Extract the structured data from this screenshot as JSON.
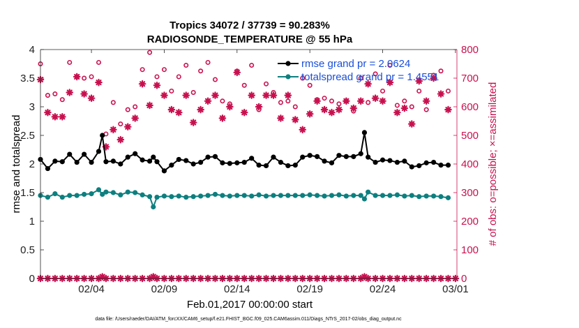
{
  "chart_data": {
    "type": "line",
    "title": "Tropics 34072 / 37739 = 90.283%",
    "subtitle": "RADIOSONDE_TEMPERATURE @ 55 hPa",
    "xlabel": "Feb.01,2017 00:00:00 start",
    "ylabel": "rmse and totalspread",
    "ylabel_right": "# of obs: o=possible; ×=assimilated",
    "footer": "data file: /Users/raeder/DAI/ATM_forcXX/CAM6_setup/f.e21.FHIST_BGC.f09_025.CAM6assim.011/Diags_NTrS_2017-02/obs_diag_output.nc",
    "xlim": [
      0.5,
      29.1
    ],
    "ylim": [
      0,
      4
    ],
    "ylim_right": [
      0,
      800
    ],
    "xticks": [
      {
        "day": 4,
        "label": "02/04"
      },
      {
        "day": 9,
        "label": "02/09"
      },
      {
        "day": 14,
        "label": "02/14"
      },
      {
        "day": 19,
        "label": "02/19"
      },
      {
        "day": 24,
        "label": "02/24"
      },
      {
        "day": 29,
        "label": "03/01"
      }
    ],
    "yticks": [
      "0",
      "0.5",
      "1",
      "1.5",
      "2",
      "2.5",
      "3",
      "3.5",
      "4"
    ],
    "yticks_right": [
      "0",
      "100",
      "200",
      "300",
      "400",
      "500",
      "600",
      "700",
      "800"
    ],
    "legend_position": "top-right",
    "series": [
      {
        "name": "rmse",
        "legend": "rmse grand pr = 2.0624",
        "color": "#000000",
        "axis": "left",
        "points": [
          [
            0.5,
            2.08
          ],
          [
            1.0,
            1.92
          ],
          [
            1.5,
            2.05
          ],
          [
            2.0,
            2.04
          ],
          [
            2.5,
            2.17
          ],
          [
            3.0,
            2.03
          ],
          [
            3.5,
            2.17
          ],
          [
            4.0,
            2.03
          ],
          [
            4.5,
            2.22
          ],
          [
            4.75,
            2.5
          ],
          [
            5.0,
            2.04
          ],
          [
            5.5,
            2.05
          ],
          [
            6.0,
            2.0
          ],
          [
            6.5,
            2.12
          ],
          [
            7.0,
            2.18
          ],
          [
            7.5,
            2.07
          ],
          [
            8.0,
            2.05
          ],
          [
            8.25,
            2.12
          ],
          [
            8.5,
            2.04
          ],
          [
            9.0,
            1.88
          ],
          [
            9.5,
            1.98
          ],
          [
            10.0,
            2.08
          ],
          [
            10.5,
            2.06
          ],
          [
            11.0,
            2.0
          ],
          [
            11.5,
            2.03
          ],
          [
            12.0,
            2.12
          ],
          [
            12.5,
            2.13
          ],
          [
            13.0,
            2.02
          ],
          [
            13.5,
            2.01
          ],
          [
            14.0,
            2.02
          ],
          [
            14.5,
            2.03
          ],
          [
            15.0,
            2.1
          ],
          [
            15.5,
            1.98
          ],
          [
            16.0,
            1.97
          ],
          [
            16.5,
            2.12
          ],
          [
            17.0,
            2.03
          ],
          [
            17.5,
            1.97
          ],
          [
            18.0,
            1.98
          ],
          [
            18.5,
            2.12
          ],
          [
            19.0,
            2.15
          ],
          [
            19.5,
            2.13
          ],
          [
            20.0,
            2.05
          ],
          [
            20.5,
            2.02
          ],
          [
            21.0,
            2.15
          ],
          [
            21.5,
            2.13
          ],
          [
            22.0,
            2.13
          ],
          [
            22.5,
            2.18
          ],
          [
            22.75,
            2.55
          ],
          [
            23.0,
            2.12
          ],
          [
            23.5,
            2.03
          ],
          [
            24.0,
            2.07
          ],
          [
            24.5,
            2.06
          ],
          [
            25.0,
            2.03
          ],
          [
            25.5,
            2.05
          ],
          [
            26.0,
            1.95
          ],
          [
            26.5,
            1.97
          ],
          [
            27.0,
            2.02
          ],
          [
            27.5,
            2.03
          ],
          [
            28.0,
            1.98
          ],
          [
            28.5,
            1.98
          ]
        ]
      },
      {
        "name": "totalspread",
        "legend": "totalspread grand pr = 1.4551",
        "color": "#0d7f7f",
        "axis": "left",
        "points": [
          [
            0.5,
            1.45
          ],
          [
            1.0,
            1.42
          ],
          [
            1.5,
            1.48
          ],
          [
            2.0,
            1.42
          ],
          [
            2.5,
            1.45
          ],
          [
            3.0,
            1.45
          ],
          [
            3.5,
            1.47
          ],
          [
            4.0,
            1.48
          ],
          [
            4.5,
            1.55
          ],
          [
            4.75,
            1.47
          ],
          [
            5.0,
            1.51
          ],
          [
            5.5,
            1.5
          ],
          [
            6.0,
            1.46
          ],
          [
            6.5,
            1.51
          ],
          [
            7.0,
            1.5
          ],
          [
            7.5,
            1.46
          ],
          [
            8.0,
            1.43
          ],
          [
            8.25,
            1.25
          ],
          [
            8.5,
            1.42
          ],
          [
            9.0,
            1.44
          ],
          [
            9.5,
            1.43
          ],
          [
            10.0,
            1.44
          ],
          [
            10.5,
            1.42
          ],
          [
            11.0,
            1.43
          ],
          [
            11.5,
            1.44
          ],
          [
            12.0,
            1.45
          ],
          [
            12.5,
            1.47
          ],
          [
            13.0,
            1.45
          ],
          [
            13.5,
            1.44
          ],
          [
            14.0,
            1.45
          ],
          [
            14.5,
            1.45
          ],
          [
            15.0,
            1.44
          ],
          [
            15.5,
            1.46
          ],
          [
            16.0,
            1.44
          ],
          [
            16.5,
            1.45
          ],
          [
            17.0,
            1.45
          ],
          [
            17.5,
            1.45
          ],
          [
            18.0,
            1.45
          ],
          [
            18.5,
            1.45
          ],
          [
            19.0,
            1.46
          ],
          [
            19.5,
            1.45
          ],
          [
            20.0,
            1.44
          ],
          [
            20.5,
            1.45
          ],
          [
            21.0,
            1.46
          ],
          [
            21.5,
            1.44
          ],
          [
            22.0,
            1.45
          ],
          [
            22.5,
            1.45
          ],
          [
            22.75,
            1.39
          ],
          [
            23.0,
            1.51
          ],
          [
            23.5,
            1.45
          ],
          [
            24.0,
            1.45
          ],
          [
            24.5,
            1.45
          ],
          [
            25.0,
            1.46
          ],
          [
            25.5,
            1.44
          ],
          [
            26.0,
            1.45
          ],
          [
            26.5,
            1.43
          ],
          [
            27.0,
            1.44
          ],
          [
            27.5,
            1.44
          ],
          [
            28.0,
            1.43
          ],
          [
            28.5,
            1.41
          ]
        ]
      },
      {
        "name": "obs possible",
        "marker": "o",
        "color": "#c8104f",
        "axis": "right",
        "points": [
          [
            0.5,
            750
          ],
          [
            1.0,
            640
          ],
          [
            1.5,
            645
          ],
          [
            2.0,
            625
          ],
          [
            2.5,
            755
          ],
          [
            3.0,
            705
          ],
          [
            3.5,
            700
          ],
          [
            4.0,
            705
          ],
          [
            4.5,
            755
          ],
          [
            5.0,
            505
          ],
          [
            5.5,
            615
          ],
          [
            6.0,
            540
          ],
          [
            6.5,
            590
          ],
          [
            7.0,
            600
          ],
          [
            7.5,
            730
          ],
          [
            8.0,
            790
          ],
          [
            8.5,
            705
          ],
          [
            9.0,
            730
          ],
          [
            9.5,
            655
          ],
          [
            10.0,
            705
          ],
          [
            10.5,
            745
          ],
          [
            11.0,
            650
          ],
          [
            11.5,
            725
          ],
          [
            12.0,
            755
          ],
          [
            12.5,
            695
          ],
          [
            13.0,
            620
          ],
          [
            13.5,
            610
          ],
          [
            14.0,
            725
          ],
          [
            14.5,
            675
          ],
          [
            15.0,
            745
          ],
          [
            15.5,
            590
          ],
          [
            16.0,
            680
          ],
          [
            16.5,
            650
          ],
          [
            17.0,
            615
          ],
          [
            17.5,
            620
          ],
          [
            18.0,
            600
          ],
          [
            18.5,
            700
          ],
          [
            19.0,
            675
          ],
          [
            19.5,
            625
          ],
          [
            20.0,
            630
          ],
          [
            20.5,
            620
          ],
          [
            21.0,
            610
          ],
          [
            21.5,
            620
          ],
          [
            22.0,
            585
          ],
          [
            22.5,
            700
          ],
          [
            23.0,
            615
          ],
          [
            23.5,
            715
          ],
          [
            24.0,
            655
          ],
          [
            24.5,
            745
          ],
          [
            25.0,
            605
          ],
          [
            25.5,
            620
          ],
          [
            26.0,
            600
          ],
          [
            26.5,
            655
          ],
          [
            27.0,
            590
          ],
          [
            27.5,
            710
          ],
          [
            28.0,
            725
          ],
          [
            28.5,
            655
          ]
        ]
      },
      {
        "name": "obs assimilated",
        "marker": "*",
        "color": "#c8104f",
        "axis": "right",
        "points": [
          [
            0.5,
            695
          ],
          [
            1.0,
            580
          ],
          [
            1.5,
            565
          ],
          [
            2.0,
            565
          ],
          [
            2.5,
            650
          ],
          [
            3.0,
            705
          ],
          [
            3.5,
            645
          ],
          [
            4.0,
            630
          ],
          [
            4.5,
            685
          ],
          [
            5.0,
            460
          ],
          [
            5.5,
            520
          ],
          [
            6.0,
            485
          ],
          [
            6.5,
            530
          ],
          [
            7.0,
            560
          ],
          [
            7.5,
            680
          ],
          [
            8.0,
            605
          ],
          [
            8.5,
            675
          ],
          [
            9.0,
            640
          ],
          [
            9.5,
            590
          ],
          [
            10.0,
            580
          ],
          [
            10.5,
            640
          ],
          [
            11.0,
            545
          ],
          [
            11.5,
            590
          ],
          [
            12.0,
            620
          ],
          [
            12.5,
            640
          ],
          [
            13.0,
            560
          ],
          [
            13.5,
            600
          ],
          [
            14.0,
            720
          ],
          [
            14.5,
            580
          ],
          [
            15.0,
            640
          ],
          [
            15.5,
            600
          ],
          [
            16.0,
            640
          ],
          [
            16.5,
            640
          ],
          [
            17.0,
            560
          ],
          [
            17.5,
            640
          ],
          [
            18.0,
            555
          ],
          [
            18.5,
            520
          ],
          [
            19.0,
            575
          ],
          [
            19.5,
            620
          ],
          [
            20.0,
            590
          ],
          [
            20.5,
            580
          ],
          [
            21.0,
            590
          ],
          [
            21.5,
            620
          ],
          [
            22.0,
            595
          ],
          [
            22.5,
            620
          ],
          [
            23.0,
            680
          ],
          [
            23.5,
            630
          ],
          [
            24.0,
            620
          ],
          [
            24.5,
            685
          ],
          [
            25.0,
            580
          ],
          [
            25.5,
            595
          ],
          [
            26.0,
            540
          ],
          [
            26.5,
            690
          ],
          [
            27.0,
            620
          ],
          [
            27.5,
            700
          ],
          [
            28.0,
            645
          ],
          [
            28.5,
            590
          ]
        ]
      },
      {
        "name": "obs near zero",
        "marker": "*",
        "color": "#c8104f",
        "axis": "right",
        "points": [
          [
            0.5,
            0
          ],
          [
            1.0,
            0
          ],
          [
            1.5,
            0
          ],
          [
            2.0,
            0
          ],
          [
            2.5,
            0
          ],
          [
            3.0,
            0
          ],
          [
            3.5,
            0
          ],
          [
            4.0,
            0
          ],
          [
            4.5,
            0
          ],
          [
            4.75,
            6
          ],
          [
            5.0,
            0
          ],
          [
            5.5,
            0
          ],
          [
            6.0,
            0
          ],
          [
            6.5,
            0
          ],
          [
            7.0,
            0
          ],
          [
            7.5,
            0
          ],
          [
            8.0,
            0
          ],
          [
            8.25,
            6
          ],
          [
            8.5,
            0
          ],
          [
            9.0,
            0
          ],
          [
            9.5,
            0
          ],
          [
            10.0,
            0
          ],
          [
            10.5,
            0
          ],
          [
            11.0,
            0
          ],
          [
            11.5,
            0
          ],
          [
            12.0,
            0
          ],
          [
            12.5,
            0
          ],
          [
            13.0,
            0
          ],
          [
            13.5,
            0
          ],
          [
            14.0,
            0
          ],
          [
            14.5,
            0
          ],
          [
            15.0,
            0
          ],
          [
            15.5,
            0
          ],
          [
            16.0,
            0
          ],
          [
            16.5,
            0
          ],
          [
            17.0,
            0
          ],
          [
            17.5,
            0
          ],
          [
            18.0,
            0
          ],
          [
            18.5,
            0
          ],
          [
            19.0,
            0
          ],
          [
            19.5,
            0
          ],
          [
            20.0,
            0
          ],
          [
            20.5,
            0
          ],
          [
            21.0,
            0
          ],
          [
            21.5,
            0
          ],
          [
            22.0,
            0
          ],
          [
            22.5,
            0
          ],
          [
            22.75,
            6
          ],
          [
            23.0,
            0
          ],
          [
            23.5,
            0
          ],
          [
            24.0,
            0
          ],
          [
            24.5,
            0
          ],
          [
            25.0,
            0
          ],
          [
            25.5,
            0
          ],
          [
            26.0,
            0
          ],
          [
            26.5,
            0
          ],
          [
            27.0,
            0
          ],
          [
            27.5,
            0
          ],
          [
            28.0,
            0
          ],
          [
            28.5,
            0
          ],
          [
            29.0,
            0
          ]
        ]
      }
    ]
  }
}
